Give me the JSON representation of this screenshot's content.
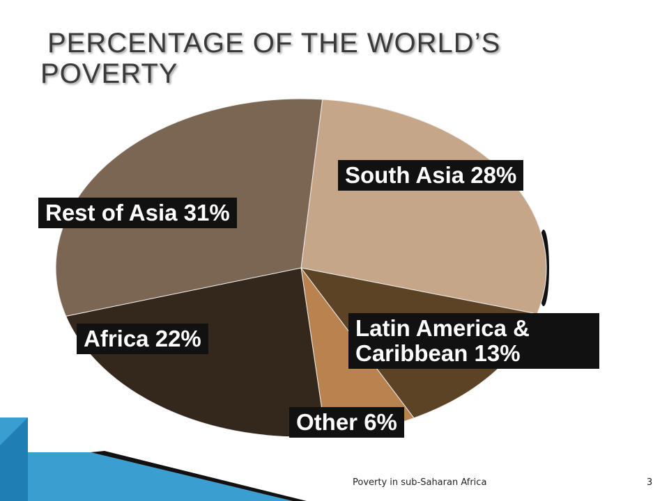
{
  "title": "PERCENTAGE OF THE WORLD’S POVERTY",
  "chart_data": {
    "type": "pie",
    "categories": [
      "South Asia",
      "Latin America & Caribbean",
      "Other",
      "Africa",
      "Rest of Asia"
    ],
    "values": [
      28,
      13,
      6,
      22,
      31
    ],
    "value_labels": [
      "28%",
      "13%",
      "6%",
      "22%",
      "31%"
    ],
    "colors": [
      "#c6a689",
      "#5c4326",
      "#b8834f",
      "#34271b",
      "#7b6653"
    ]
  },
  "footer": {
    "text": "Poverty in sub-Saharan Africa",
    "page": "3"
  }
}
